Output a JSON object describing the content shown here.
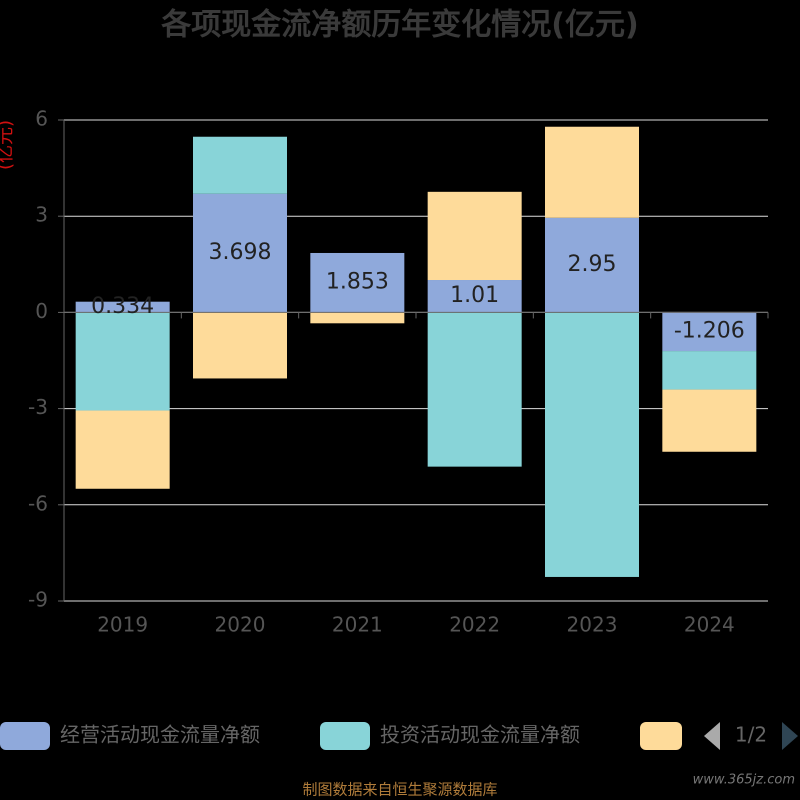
{
  "chart_data": {
    "type": "bar",
    "stacked": true,
    "title": "各项现金流净额历年变化情况(亿元)",
    "y_label": "(亿元)",
    "categories": [
      "2019",
      "2020",
      "2021",
      "2022",
      "2023",
      "2024"
    ],
    "series": [
      {
        "name": "经营活动现金流量净额",
        "color": "#8fa9db",
        "values": [
          0.334,
          3.698,
          1.853,
          1.01,
          2.95,
          -1.206
        ],
        "show_labels": true
      },
      {
        "name": "投资活动现金流量净额",
        "color": "#88d4d8",
        "values": [
          -3.06,
          1.78,
          0,
          -4.81,
          -8.25,
          -1.2
        ]
      },
      {
        "color": "#fedb9a",
        "values": [
          -2.44,
          -2.06,
          -0.34,
          2.75,
          2.84,
          -1.94
        ]
      }
    ],
    "ylim": [
      -9,
      6
    ],
    "yticks": [
      -9,
      -6,
      -3,
      0,
      3,
      6
    ],
    "grid": true,
    "legend_page": "1/2",
    "source": "制图数据来自恒生聚源数据库",
    "watermark": "www.365jz.com"
  }
}
